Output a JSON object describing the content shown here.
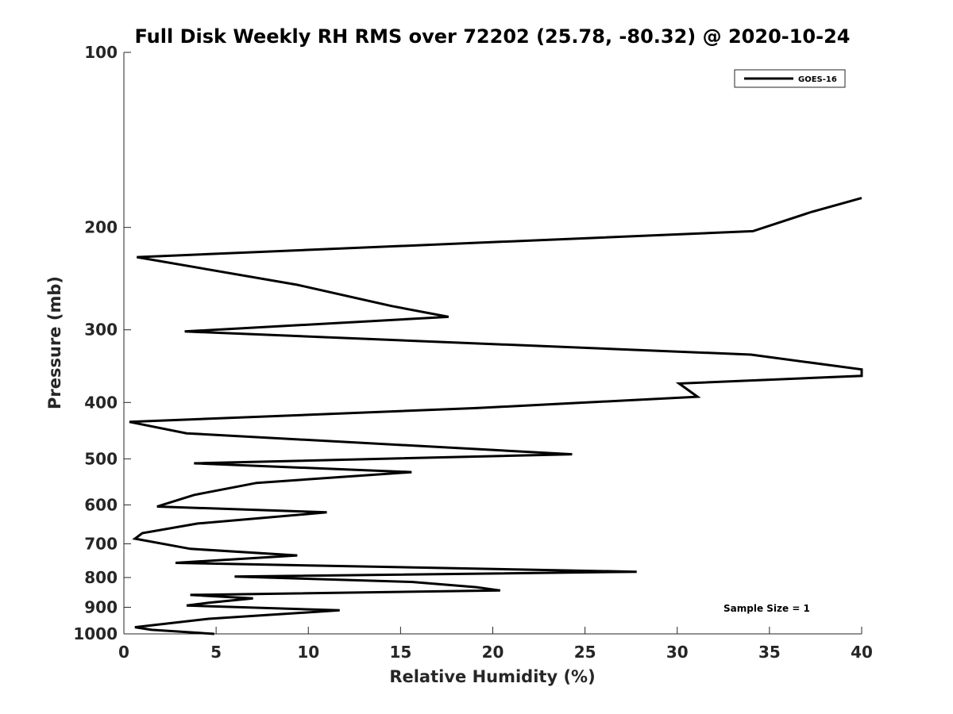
{
  "chart_data": {
    "type": "line",
    "title": "Full Disk Weekly RH RMS over 72202 (25.78, -80.32) @ 2020-10-24",
    "xlabel": "Relative Humidity (%)",
    "ylabel": "Pressure (mb)",
    "xlim": [
      0,
      40
    ],
    "ylim": [
      100,
      1000
    ],
    "yscale": "log",
    "yreversed": true,
    "xticks": [
      0,
      5,
      10,
      15,
      20,
      25,
      30,
      35,
      40
    ],
    "yticks": [
      100,
      200,
      300,
      400,
      500,
      600,
      700,
      800,
      900,
      1000
    ],
    "legend": {
      "position": "top-right",
      "entries": [
        "GOES-16"
      ]
    },
    "annotation": "Sample Size = 1",
    "series": [
      {
        "name": "GOES-16",
        "color": "#000000",
        "points": [
          [
            40.0,
            178
          ],
          [
            37.3,
            188
          ],
          [
            34.1,
            203
          ],
          [
            0.7,
            225
          ],
          [
            9.4,
            251
          ],
          [
            14.5,
            273
          ],
          [
            17.6,
            285
          ],
          [
            3.3,
            302
          ],
          [
            34.0,
            331
          ],
          [
            40.0,
            351
          ],
          [
            40.0,
            360
          ],
          [
            30.1,
            371
          ],
          [
            31.1,
            391
          ],
          [
            19.1,
            409
          ],
          [
            0.3,
            432
          ],
          [
            3.4,
            452
          ],
          [
            24.3,
            491
          ],
          [
            3.8,
            509
          ],
          [
            15.6,
            527
          ],
          [
            7.2,
            550
          ],
          [
            3.8,
            577
          ],
          [
            1.8,
            604
          ],
          [
            11.0,
            618
          ],
          [
            4.0,
            646
          ],
          [
            1.0,
            671
          ],
          [
            0.6,
            686
          ],
          [
            3.6,
            714
          ],
          [
            9.4,
            733
          ],
          [
            2.8,
            755
          ],
          [
            27.8,
            782
          ],
          [
            6.0,
            797
          ],
          [
            15.6,
            814
          ],
          [
            19.1,
            831
          ],
          [
            20.4,
            842
          ],
          [
            3.6,
            857
          ],
          [
            7.0,
            869
          ],
          [
            4.6,
            884
          ],
          [
            3.4,
            894
          ],
          [
            11.7,
            911
          ],
          [
            4.6,
            942
          ],
          [
            0.6,
            974
          ],
          [
            1.5,
            984
          ],
          [
            4.9,
            1000
          ]
        ]
      }
    ]
  }
}
